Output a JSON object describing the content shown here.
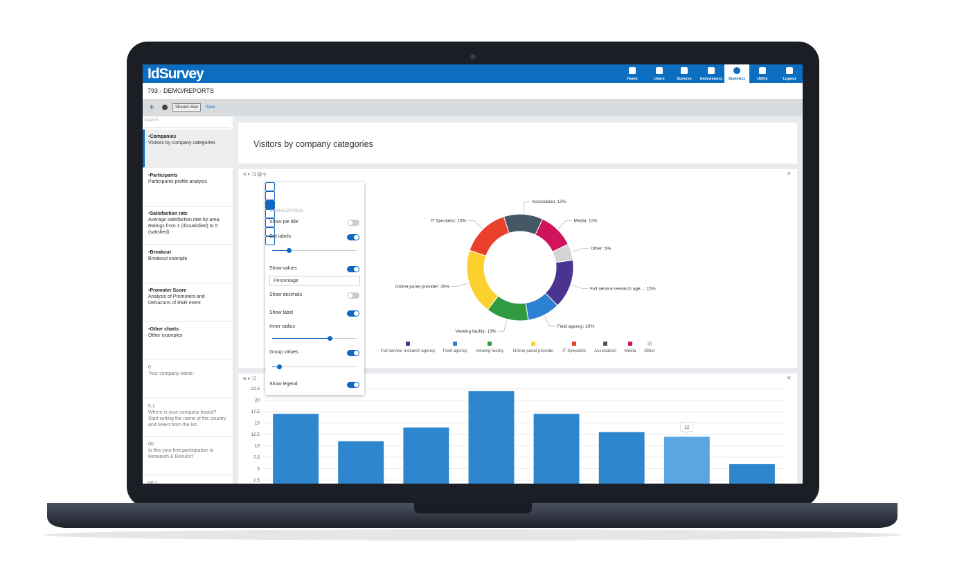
{
  "app": {
    "logo": "IdSurvey",
    "nav": [
      "Home",
      "Users",
      "Surveys",
      "Interviewers",
      "Statistics",
      "Utility",
      "Logout"
    ],
    "active_nav": "Statistics"
  },
  "project": "793 - DEMO/REPORTS",
  "toolbar": {
    "shared_view": "Shared view",
    "save": "Save"
  },
  "sidebar": {
    "search": "Search",
    "reports": [
      {
        "title": "Companies",
        "description": "Visitors by company categories",
        "selected": true
      },
      {
        "title": "Participants",
        "description": "Participants profile analysis"
      },
      {
        "title": "Satisfaction rate",
        "description": "Average satisfaction rate by area. Ratings from 1 (dissatisfied) to 5 (satisfied)"
      },
      {
        "title": "Breakout",
        "description": "Breakout example"
      },
      {
        "title": "Promoter Score",
        "description": "Analysis of Promoters and Detractors of R&R event"
      },
      {
        "title": "Other charts",
        "description": "Other examples"
      }
    ],
    "questions": [
      {
        "code": "0",
        "text": "Your company name:"
      },
      {
        "code": "0.1",
        "text": "Where is your company based? Start writing the name of the country and select from the list."
      },
      {
        "code": "00",
        "text": "Is this your first participation to Research & Results?"
      },
      {
        "code": "00.1"
      }
    ]
  },
  "report_title": "Visitors by company categories",
  "settings_panel": {
    "section": "VISUALIZATION",
    "options": [
      {
        "label": "Show pie title",
        "toggle": false
      },
      {
        "label": "Cut labels",
        "toggle": true
      },
      {
        "label": "Show values",
        "toggle": true
      },
      {
        "label": "Show decimals",
        "toggle": false
      },
      {
        "label": "Show label",
        "toggle": true
      },
      {
        "label": "Inner radius"
      },
      {
        "label": "Group values",
        "toggle": true
      },
      {
        "label": "Show legend",
        "toggle": true
      }
    ],
    "value_format": "Percentage"
  },
  "chart_data": [
    {
      "type": "pie",
      "categories": [
        "Full service research agency",
        "Field agency",
        "Viewing facility",
        "Online panel provider",
        "IT Specialist",
        "Association",
        "Media",
        "Other"
      ],
      "values": [
        15,
        10,
        13,
        20,
        15,
        12,
        11,
        5
      ],
      "value_labels": [
        "Full service research age...: 15%",
        "Field agency: 10%",
        "Viewing facility: 13%",
        "Online panel provider: 20%",
        "IT Specialist: 15%",
        "Association: 12%",
        "Media: 11%",
        "Other: 5%"
      ],
      "colors": [
        "#4a3490",
        "#2b80d0",
        "#2f9a3f",
        "#fdd12d",
        "#e9402c",
        "#465865",
        "#cf145c",
        "#d4d4d4"
      ],
      "legend": true
    },
    {
      "type": "bar",
      "categories": [
        null,
        null,
        null,
        null,
        null,
        null,
        null,
        null
      ],
      "values": [
        17,
        11,
        14,
        22,
        17,
        13,
        12,
        6
      ],
      "color": "#2e86ce",
      "hover_color": "#5aa5e2",
      "hover": 6,
      "ylim": [
        0,
        22.5
      ],
      "yticks": [
        2.5,
        5,
        7.5,
        10,
        12.5,
        15,
        17.5,
        20,
        22.5
      ],
      "grid": true
    }
  ]
}
